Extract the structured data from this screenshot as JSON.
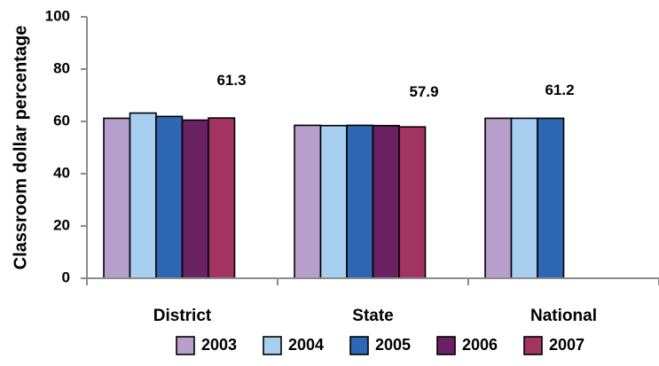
{
  "chart_data": {
    "type": "bar",
    "title": "",
    "xlabel": "",
    "ylabel": "Classroom dollar percentage",
    "ylim": [
      0,
      100
    ],
    "yticks": [
      0,
      20,
      40,
      60,
      80,
      100
    ],
    "grid": false,
    "legend_position": "bottom",
    "categories": [
      "District",
      "State",
      "National"
    ],
    "series": [
      {
        "name": "2003",
        "color": "#b79fcb",
        "values": [
          61.2,
          58.5,
          61.2
        ]
      },
      {
        "name": "2004",
        "color": "#a9cff0",
        "values": [
          63.2,
          58.4,
          61.2
        ]
      },
      {
        "name": "2005",
        "color": "#2e67b4",
        "values": [
          61.9,
          58.5,
          61.2
        ]
      },
      {
        "name": "2006",
        "color": "#6a2163",
        "values": [
          60.5,
          58.4,
          null
        ]
      },
      {
        "name": "2007",
        "color": "#a23462",
        "values": [
          61.3,
          57.9,
          null
        ]
      }
    ],
    "annotations": [
      {
        "category": "District",
        "text": "61.3"
      },
      {
        "category": "State",
        "text": "57.9"
      },
      {
        "category": "National",
        "text": "61.2"
      }
    ]
  }
}
